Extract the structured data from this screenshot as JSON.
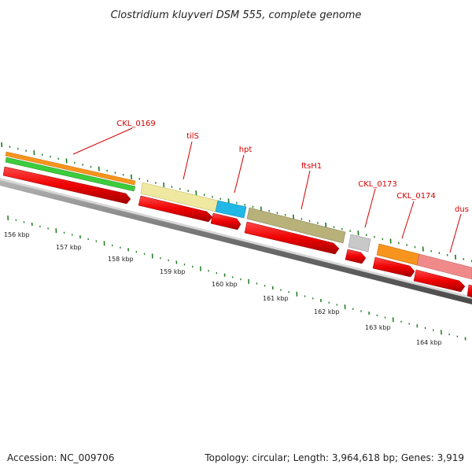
{
  "title": "Clostridium kluyveri DSM 555, complete genome",
  "accession": "Accession: NC_009706",
  "summary": "Topology: circular; Length: 3,964,618 bp; Genes: 3,919",
  "colors": {
    "label": "#d40000",
    "tick": "#1a7a1a",
    "backbone": "#8a8a8a",
    "cds": "#ee1111"
  },
  "features": [
    {
      "name": "",
      "type": "orange",
      "color": "#f7941d"
    },
    {
      "name": "",
      "type": "green",
      "color": "#3ccc3c"
    },
    {
      "name": "",
      "type": "khaki-light",
      "color": "#efe8a0"
    },
    {
      "name": "",
      "type": "cyan",
      "color": "#22b8e6"
    },
    {
      "name": "",
      "type": "khaki-dark",
      "color": "#b8b27a"
    },
    {
      "name": "",
      "type": "grey",
      "color": "#c0c0c0"
    },
    {
      "name": "",
      "type": "orange",
      "color": "#f7941d"
    },
    {
      "name": "",
      "type": "pink",
      "color": "#f08a8a"
    }
  ],
  "gene_labels": [
    "CKL_0169",
    "tilS",
    "hpt",
    "ftsH1",
    "CKL_0173",
    "CKL_0174",
    "dus"
  ],
  "kbp_labels": [
    "156 kbp",
    "157 kbp",
    "158 kbp",
    "159 kbp",
    "160 kbp",
    "161 kbp",
    "162 kbp",
    "163 kbp",
    "164 kbp"
  ]
}
